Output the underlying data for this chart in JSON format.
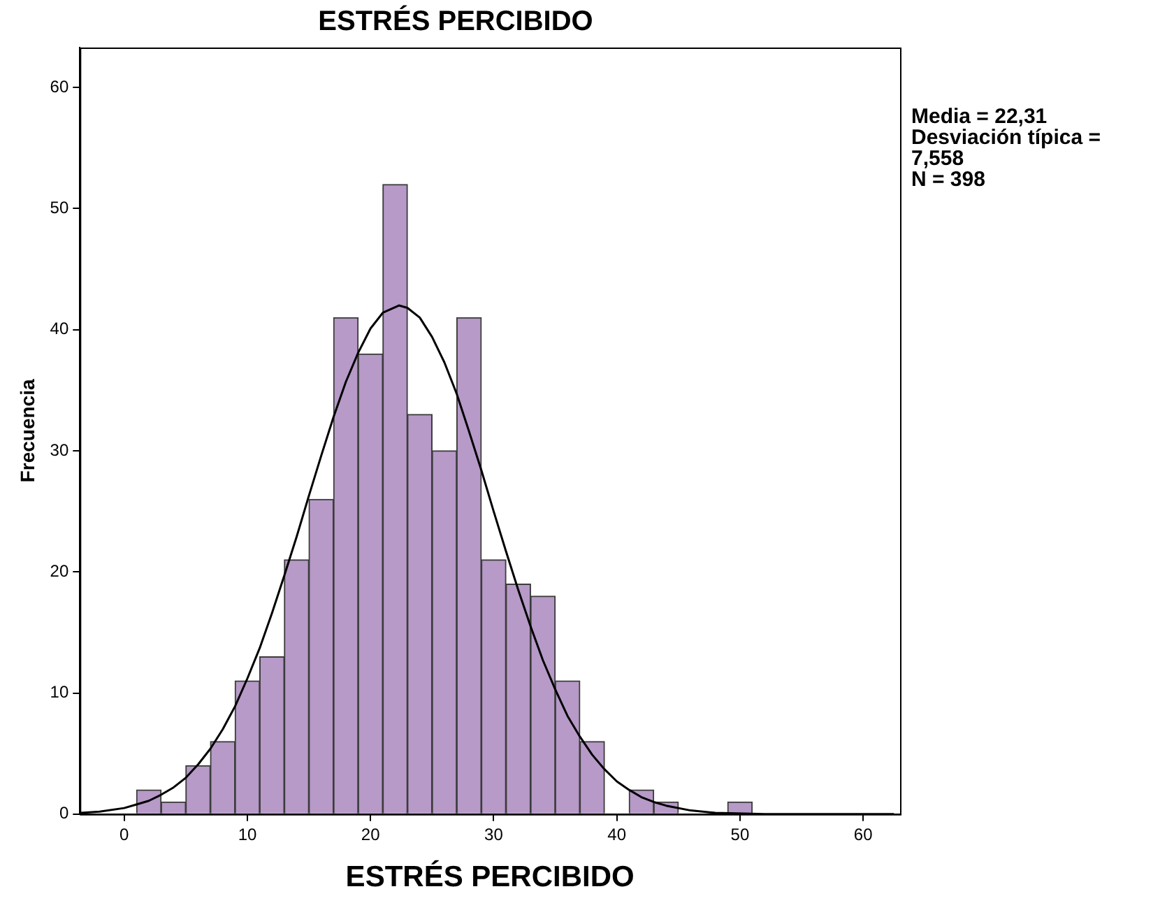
{
  "chart_data": {
    "type": "histogram",
    "title": "ESTRÉS PERCIBIDO",
    "xlabel": "ESTRÉS PERCIBIDO",
    "ylabel": "Frecuencia",
    "bins": [
      1,
      3,
      5,
      7,
      9,
      11,
      13,
      15,
      17,
      19,
      21,
      23,
      25,
      27,
      29,
      31,
      33,
      35,
      37,
      39,
      41,
      43,
      45,
      47,
      49,
      51
    ],
    "values": [
      2,
      1,
      4,
      6,
      11,
      13,
      21,
      26,
      41,
      38,
      52,
      33,
      30,
      41,
      21,
      19,
      18,
      11,
      6,
      0,
      2,
      1,
      0,
      0,
      1
    ],
    "color": "#b79ac8",
    "series": [
      {
        "type": "line",
        "color": "#000000",
        "x": [
          -3.5,
          -2,
          0,
          1,
          2,
          3,
          4,
          5,
          6,
          7,
          8,
          9,
          10,
          11,
          12,
          13,
          14,
          15,
          16,
          17,
          18,
          19,
          20,
          21,
          22.31,
          23,
          24,
          25,
          26,
          27,
          28,
          29,
          30,
          31,
          32,
          33,
          34,
          35,
          36,
          37,
          38,
          39,
          40,
          41,
          42,
          43,
          44,
          46,
          48,
          52,
          56,
          62.5
        ],
        "values": [
          0.1,
          0.2,
          0.5,
          0.8,
          1.1,
          1.6,
          2.2,
          3,
          4.1,
          5.4,
          7,
          8.9,
          11.2,
          13.7,
          16.6,
          19.7,
          22.9,
          26.3,
          29.6,
          32.8,
          35.7,
          38.1,
          40.1,
          41.4,
          42,
          41.8,
          41,
          39.4,
          37.3,
          34.7,
          31.6,
          28.4,
          25,
          21.7,
          18.5,
          15.5,
          12.7,
          10.3,
          8.1,
          6.4,
          4.9,
          3.7,
          2.7,
          2,
          1.4,
          1,
          0.7,
          0.3,
          0.1,
          0,
          0,
          0
        ]
      }
    ],
    "xlim": [
      -3.6,
      63
    ],
    "xticks": [
      0,
      10,
      20,
      30,
      40,
      50,
      60
    ],
    "ylim": [
      0,
      63.3
    ],
    "yticks": [
      0,
      10,
      20,
      30,
      40,
      50,
      60
    ],
    "annotations": [
      "Media = 22,31",
      "Desviación típica = 7,558",
      "N = 398"
    ]
  }
}
